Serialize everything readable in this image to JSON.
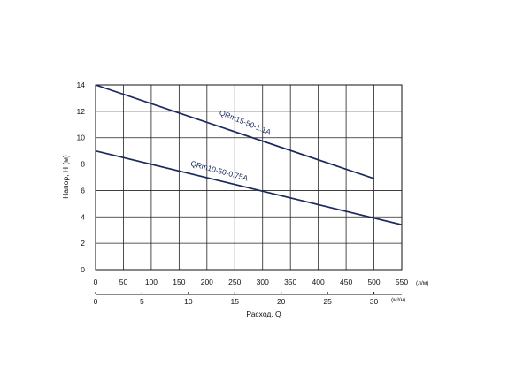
{
  "chart_data": {
    "type": "line",
    "y_axis": {
      "label": "Напор, H (м)",
      "min": 0,
      "max": 14,
      "ticks": [
        "0",
        "2",
        "4",
        "6",
        "8",
        "10",
        "12",
        "14"
      ],
      "grid": true
    },
    "x_axis_primary": {
      "unit": "(л/м)",
      "min": 0,
      "max": 550,
      "ticks": [
        "0",
        "50",
        "100",
        "150",
        "200",
        "250",
        "300",
        "350",
        "400",
        "450",
        "500",
        "550"
      ],
      "grid": true
    },
    "x_axis_secondary": {
      "unit": "(м³/ч)",
      "ticks": [
        "0",
        "5",
        "10",
        "15",
        "20",
        "25",
        "30"
      ],
      "tick_values_lpm": [
        0,
        83.3,
        166.7,
        250,
        333.3,
        416.7,
        500
      ]
    },
    "xlabel": "Расход, Q",
    "series": [
      {
        "name": "QRm15-50-1.1A",
        "x": [
          0,
          500
        ],
        "y": [
          14,
          6.9
        ]
      },
      {
        "name": "QRm10-50-0.75A",
        "x": [
          0,
          550
        ],
        "y": [
          9,
          3.4
        ]
      }
    ],
    "colors": {
      "line": "#1a2a5e",
      "grid": "#222222"
    }
  }
}
